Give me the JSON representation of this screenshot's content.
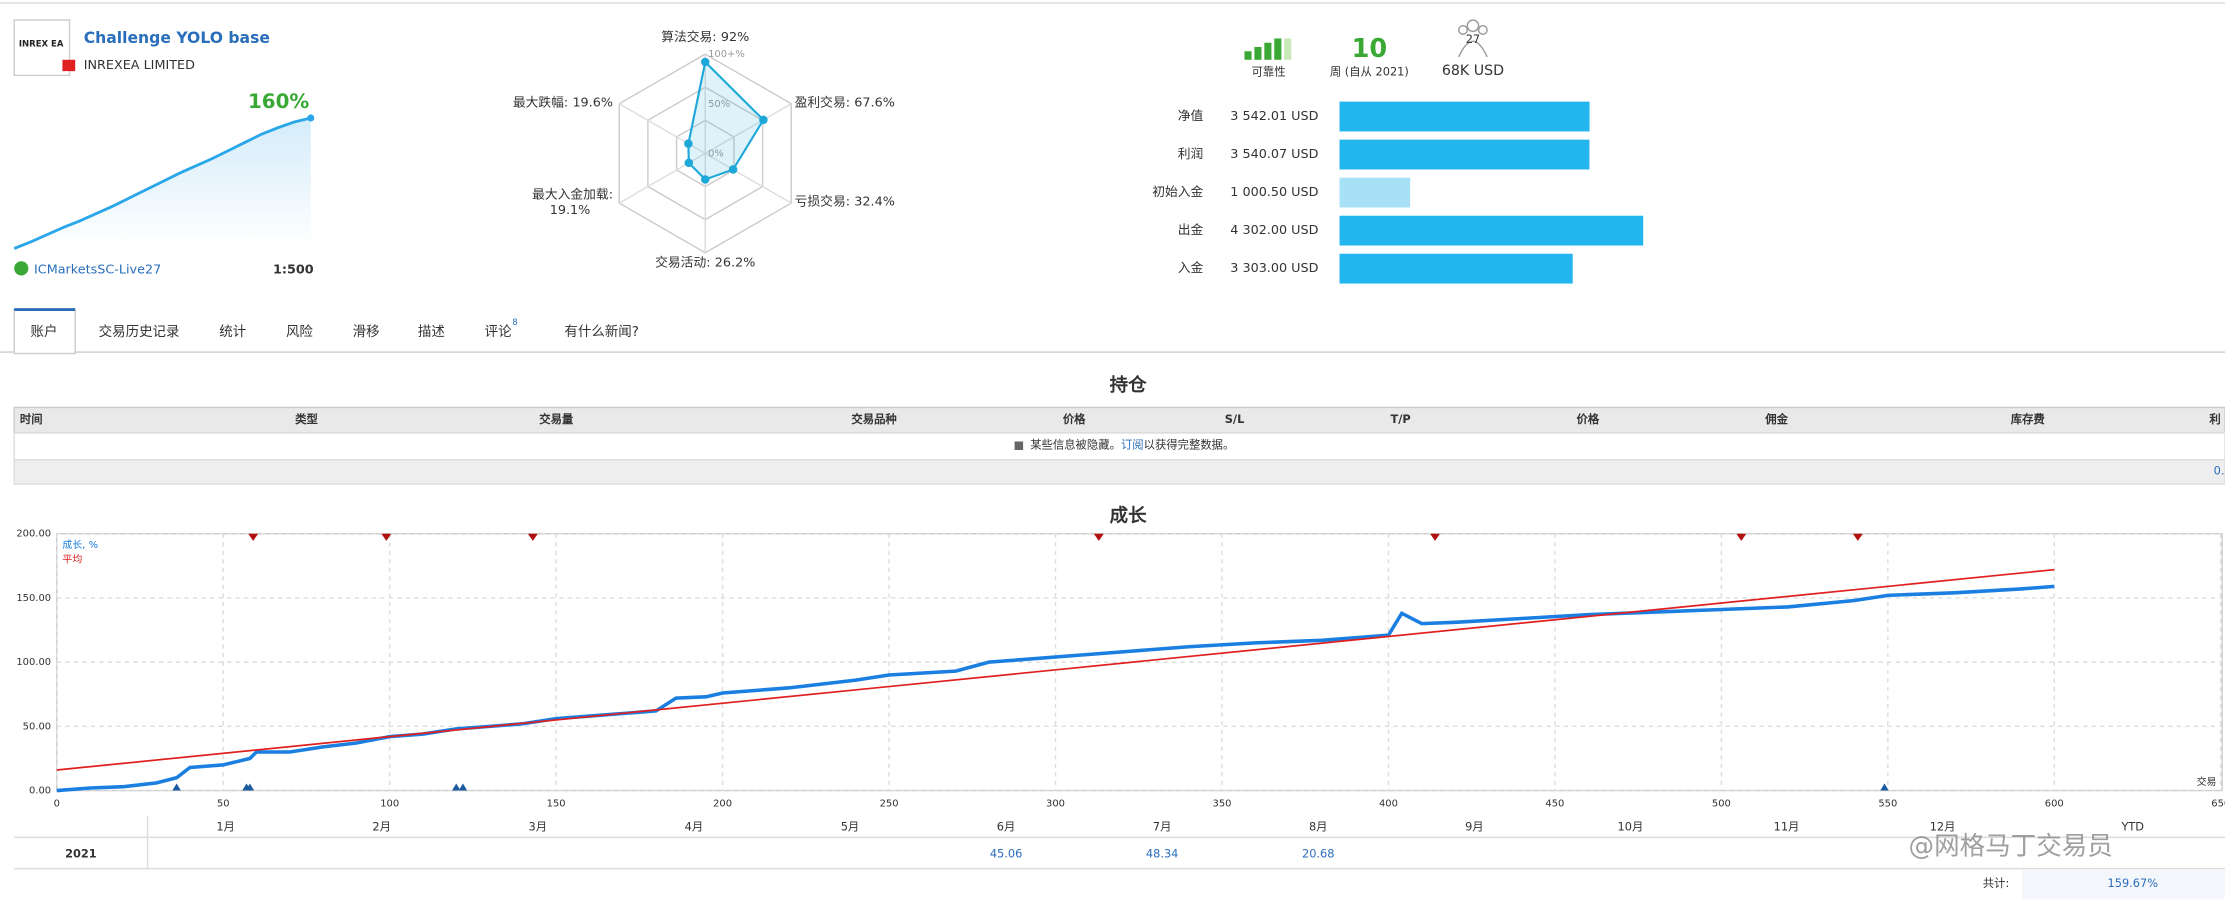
{
  "header": {
    "logo": "INREX EA",
    "title": "Challenge YOLO base",
    "company": "INREXEA LIMITED",
    "growth": "160%",
    "server": "ICMarketsSC-Live27",
    "leverage": "1:500"
  },
  "sparkline": {
    "values": [
      0,
      8,
      17,
      26,
      34,
      43,
      52,
      62,
      72,
      82,
      92,
      101,
      110,
      120,
      130,
      140,
      148,
      155,
      160
    ],
    "color": "#2aa7e8"
  },
  "radar": {
    "rlim": [
      0,
      100
    ],
    "ticks": [
      {
        "value": 0,
        "label": "0%"
      },
      {
        "value": 50,
        "label": "50%"
      },
      {
        "value": 100,
        "label": "100+%"
      }
    ],
    "axes": [
      {
        "name": "算法交易:",
        "value": 92,
        "value_label": "92%"
      },
      {
        "name": "盈利交易:",
        "value": 67.6,
        "value_label": "67.6%"
      },
      {
        "name": "亏损交易:",
        "value": 32.4,
        "value_label": "32.4%"
      },
      {
        "name": "交易活动:",
        "value": 26.2,
        "value_label": "26.2%"
      },
      {
        "name": "最大入金加载:",
        "value": 19.1,
        "value_label": "19.1%"
      },
      {
        "name": "最大跌幅:",
        "value": 19.6,
        "value_label": "19.6%"
      }
    ],
    "color": "#1ea8d9"
  },
  "stats": {
    "reliability": "可靠性",
    "weeks": "10",
    "weeks_label": "周 (自从 2021)",
    "subscribers": "27",
    "amount": "68K USD"
  },
  "balance": [
    {
      "label": "净值",
      "text": "3 542.01 USD",
      "value": 3542.01,
      "color": "#22b5ee"
    },
    {
      "label": "利润",
      "text": "3 540.07 USD",
      "value": 3540.07,
      "color": "#22b5ee"
    },
    {
      "label": "初始入金",
      "text": "1 000.50 USD",
      "value": 1000.5,
      "color": "#a8e0f7"
    },
    {
      "label": "出金",
      "text": "4 302.00 USD",
      "value": 4302,
      "color": "#22b5ee"
    },
    {
      "label": "入金",
      "text": "3 303.00 USD",
      "value": 3303,
      "color": "#22b5ee"
    }
  ],
  "tabs": {
    "items": [
      "账户",
      "交易历史记录",
      "统计",
      "风险",
      "滑移",
      "描述",
      "评论",
      "有什么新闻?"
    ],
    "badge": "8",
    "active": 0
  },
  "positions": {
    "title": "持仓",
    "columns": [
      "时间",
      "类型",
      "交易量",
      "交易品种",
      "价格",
      "S/L",
      "T/P",
      "价格",
      "佣金",
      "库存费",
      "利"
    ],
    "notice": [
      "某些信息被隐藏。",
      "订阅",
      "以获得完整数据。"
    ],
    "footer": "0."
  },
  "growth_chart": {
    "type": "line",
    "title": "成长",
    "xlim": [
      0,
      650
    ],
    "ylim": [
      0,
      200
    ],
    "xticks": [
      0,
      50,
      100,
      150,
      200,
      250,
      300,
      350,
      400,
      450,
      500,
      550,
      600,
      650
    ],
    "yticks": [
      {
        "value": 0,
        "label": "0.00"
      },
      {
        "value": 50,
        "label": "50.00"
      },
      {
        "value": 100,
        "label": "100.00"
      },
      {
        "value": 150,
        "label": "150.00"
      },
      {
        "value": 200,
        "label": "200.00"
      }
    ],
    "x_label": "交易",
    "grid": true,
    "series": [
      {
        "name": "成长, %",
        "color": "#1a7fe0",
        "x": [
          0,
          10,
          20,
          30,
          36,
          40,
          50,
          58,
          60,
          70,
          80,
          90,
          100,
          110,
          120,
          130,
          140,
          150,
          160,
          170,
          180,
          186,
          195,
          200,
          220,
          240,
          250,
          270,
          280,
          300,
          320,
          340,
          360,
          380,
          400,
          404,
          410,
          420,
          440,
          460,
          480,
          500,
          520,
          540,
          550,
          570,
          590,
          600
        ],
        "values": [
          0,
          2,
          3,
          6,
          10,
          18,
          20,
          25,
          30,
          30,
          34,
          37,
          42,
          44,
          48,
          50,
          52,
          56,
          58,
          60,
          62,
          72,
          73,
          76,
          80,
          86,
          90,
          93,
          100,
          104,
          108,
          112,
          115,
          117,
          121,
          138,
          130,
          131,
          134,
          137,
          139,
          141,
          143,
          148,
          152,
          154,
          157,
          159
        ]
      },
      {
        "name": "平均",
        "color": "#e02020",
        "x": [
          0,
          600
        ],
        "values": [
          16,
          172
        ]
      }
    ],
    "top_markers_x": [
      59,
      99,
      143,
      313,
      414,
      506,
      541
    ],
    "bottom_markers_x": [
      36,
      57,
      58,
      120,
      122,
      549
    ]
  },
  "monthly": {
    "months": [
      "1月",
      "2月",
      "3月",
      "4月",
      "5月",
      "6月",
      "7月",
      "8月",
      "9月",
      "10月",
      "11月",
      "12月",
      "YTD"
    ],
    "year": "2021",
    "values": [
      null,
      null,
      null,
      null,
      null,
      45.06,
      48.34,
      20.68,
      null,
      null,
      null,
      null,
      null
    ],
    "total_label": "共计:",
    "total": "159.67%"
  },
  "watermark": "@网格马丁交易员"
}
